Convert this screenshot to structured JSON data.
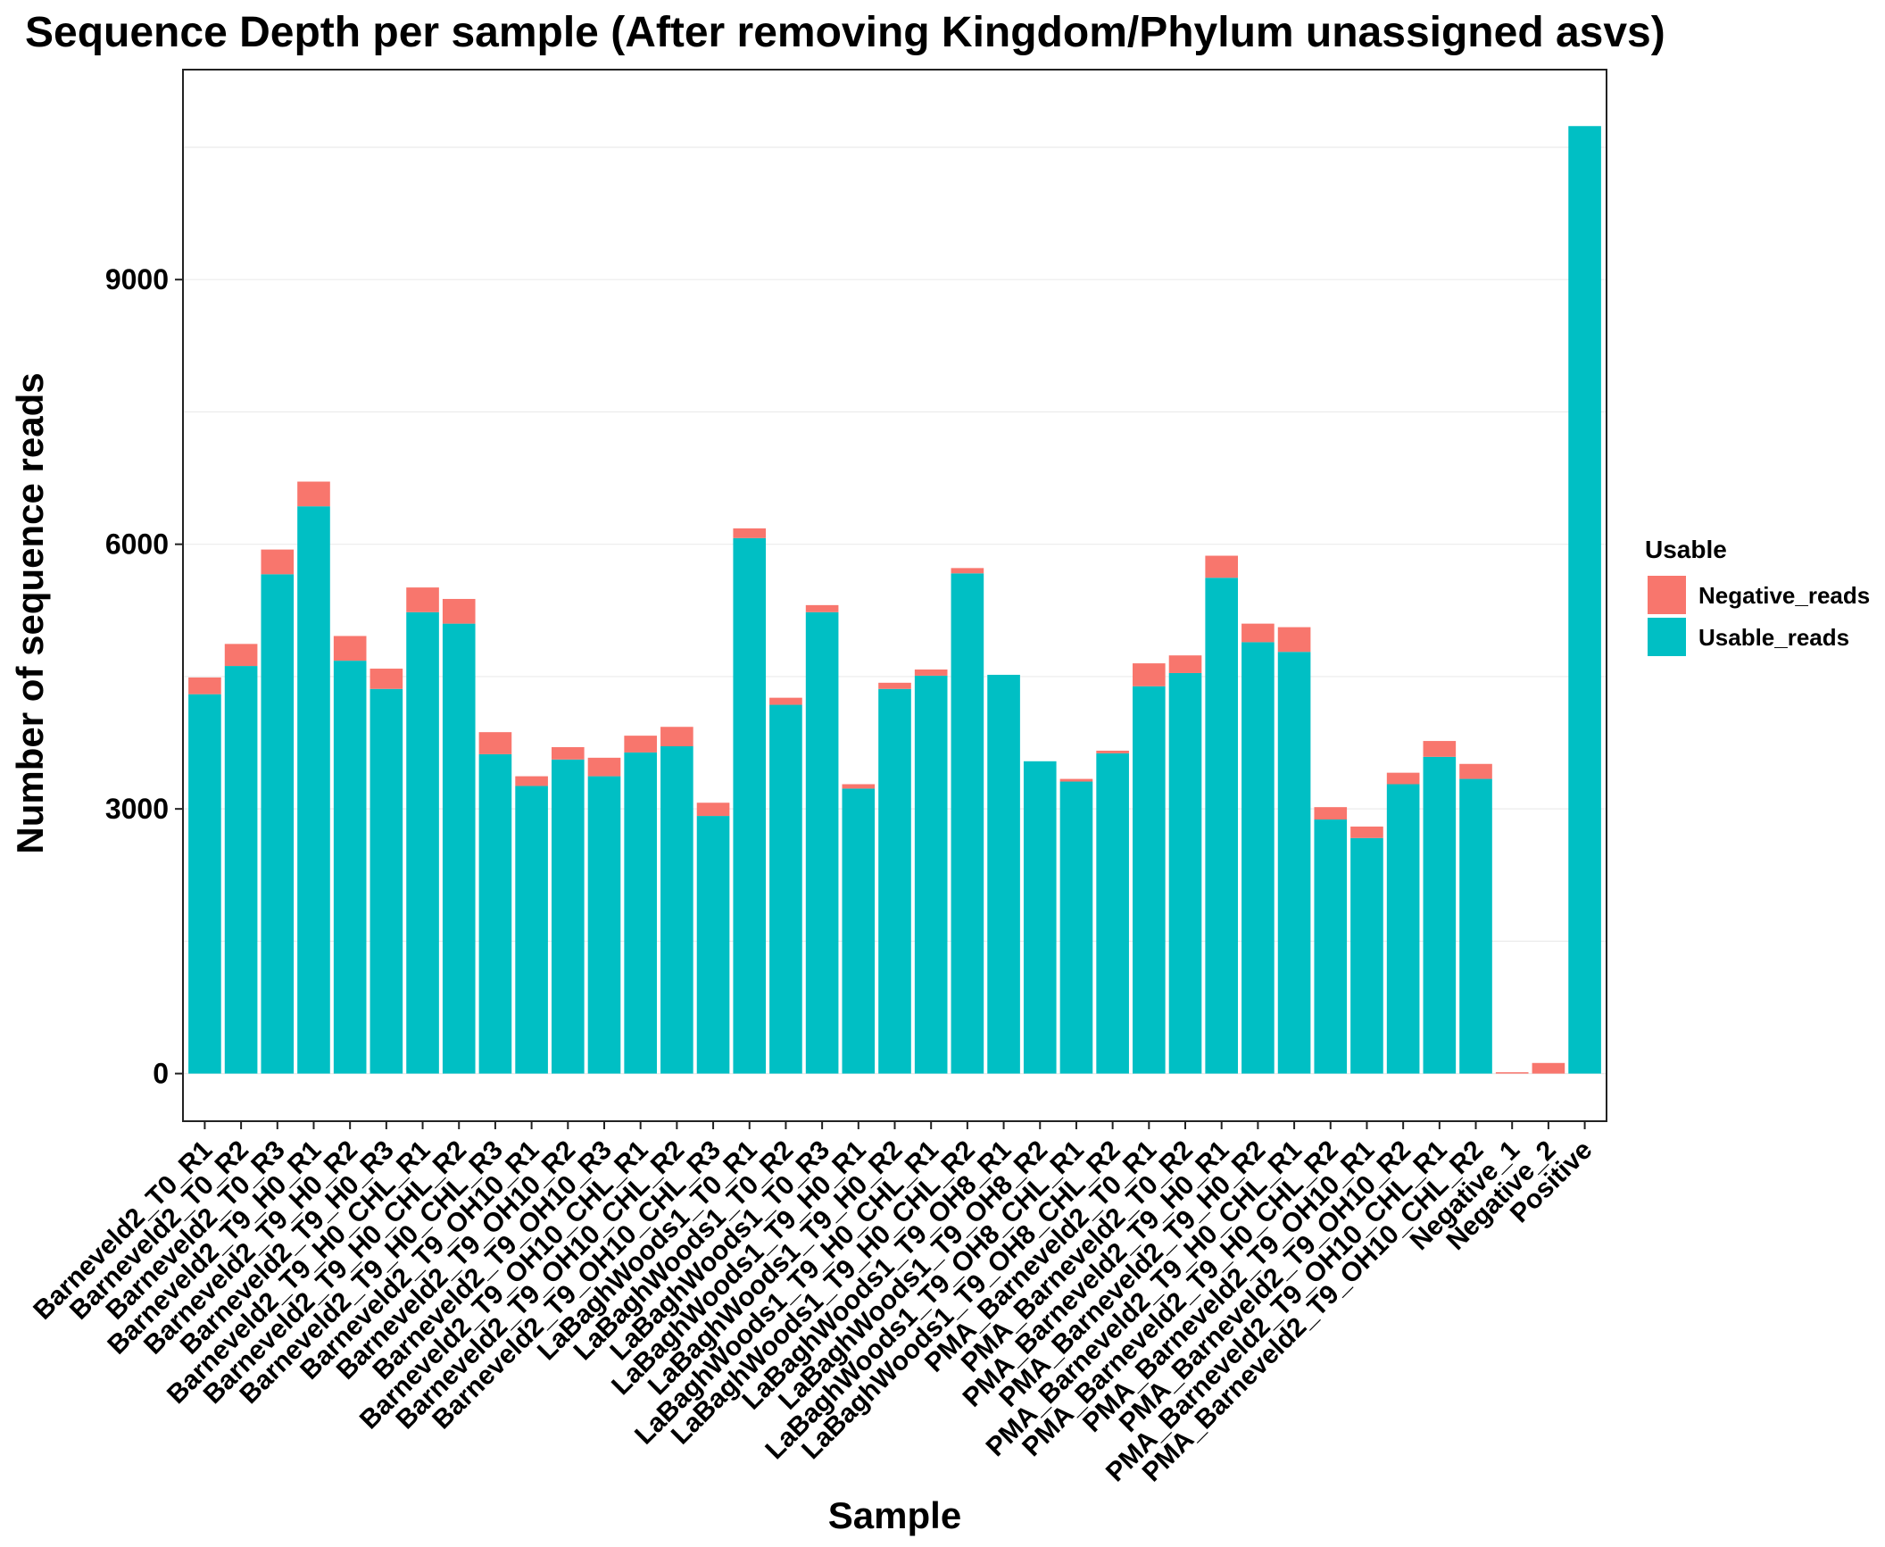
{
  "chart_data": {
    "type": "bar",
    "stacked": true,
    "title": "Sequence Depth per sample (After removing Kingdom/Phylum unassigned asvs)",
    "xlabel": "Sample",
    "ylabel": "Number of sequence reads",
    "ylim": [
      -540,
      11380
    ],
    "yticks": [
      0,
      3000,
      6000,
      9000
    ],
    "grid": true,
    "legend_position": "right",
    "legend_title": "Usable",
    "categories": [
      "Barneveld2_T0_R1",
      "Barneveld2_T0_R2",
      "Barneveld2_T0_R3",
      "Barneveld2_T9_H0_R1",
      "Barneveld2_T9_H0_R2",
      "Barneveld2_T9_H0_R3",
      "Barneveld2_T9_H0_CHL_R1",
      "Barneveld2_T9_H0_CHL_R2",
      "Barneveld2_T9_H0_CHL_R3",
      "Barneveld2_T9_OH10_R1",
      "Barneveld2_T9_OH10_R2",
      "Barneveld2_T9_OH10_R3",
      "Barneveld2_T9_OH10_CHL_R1",
      "Barneveld2_T9_OH10_CHL_R2",
      "Barneveld2_T9_OH10_CHL_R3",
      "LaBaghWoods1_T0_R1",
      "LaBaghWoods1_T0_R2",
      "LaBaghWoods1_T0_R3",
      "LaBaghWoods1_T9_H0_R1",
      "LaBaghWoods1_T9_H0_R2",
      "LaBaghWoods1_T9_H0_CHL_R1",
      "LaBaghWoods1_T9_H0_CHL_R2",
      "LaBaghWoods1_T9_OH8_R1",
      "LaBaghWoods1_T9_OH8_R2",
      "LaBaghWoods1_T9_OH8_CHL_R1",
      "LaBaghWoods1_T9_OH8_CHL_R2",
      "PMA_Barneveld2_T0_R1",
      "PMA_Barneveld2_T0_R2",
      "PMA_Barneveld2_T9_H0_R1",
      "PMA_Barneveld2_T9_H0_R2",
      "PMA_Barneveld2_T9_H0_CHL_R1",
      "PMA_Barneveld2_T9_H0_CHL_R2",
      "PMA_Barneveld2_T9_OH10_R1",
      "PMA_Barneveld2_T9_OH10_R2",
      "PMA_Barneveld2_T9_OH10_CHL_R1",
      "PMA_Barneveld2_T9_OH10_CHL_R2",
      "Negative_1",
      "Negative_2",
      "Positive"
    ],
    "series": [
      {
        "name": "Usable_reads",
        "color": "#00BFC4",
        "values": [
          4300,
          4620,
          5660,
          6430,
          4680,
          4360,
          5230,
          5100,
          3620,
          3260,
          3560,
          3370,
          3640,
          3710,
          2920,
          6070,
          4180,
          5230,
          3230,
          4360,
          4510,
          5670,
          4520,
          3540,
          3310,
          3630,
          4390,
          4540,
          5620,
          4890,
          4780,
          2880,
          2670,
          3280,
          3590,
          3340,
          0,
          0,
          10740
        ]
      },
      {
        "name": "Negative_reads",
        "color": "#F8766D",
        "values": [
          190,
          250,
          280,
          280,
          280,
          230,
          280,
          280,
          250,
          110,
          140,
          210,
          190,
          220,
          150,
          110,
          80,
          80,
          50,
          70,
          70,
          60,
          0,
          0,
          30,
          30,
          260,
          200,
          250,
          210,
          280,
          140,
          130,
          130,
          180,
          170,
          15,
          120,
          0
        ]
      }
    ],
    "legend_order": [
      "Negative_reads",
      "Usable_reads"
    ]
  }
}
